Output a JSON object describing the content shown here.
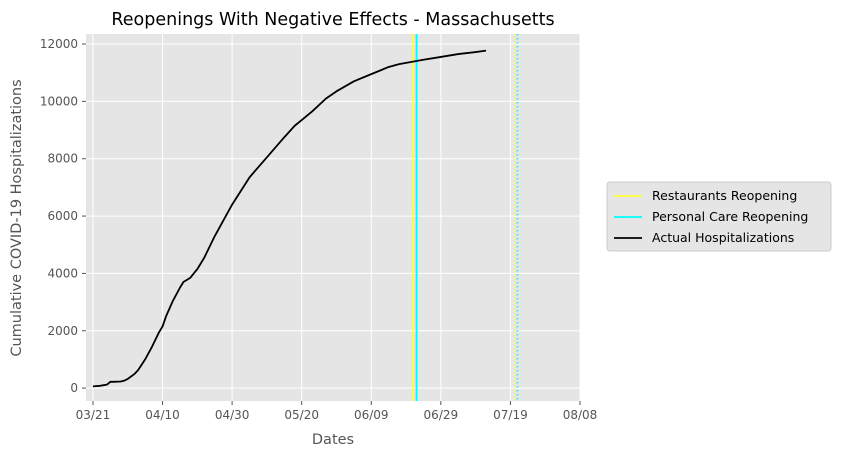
{
  "chart_data": {
    "type": "line",
    "title": "Reopenings With Negative Effects - Massachusetts",
    "xlabel": "Dates",
    "ylabel": "Cumulative COVID-19 Hospitalizations",
    "x_start_date": "2020-03-21",
    "xlim_days": [
      -2,
      140
    ],
    "ylim": [
      -450,
      12350
    ],
    "x_ticks": [
      {
        "label": "03/21",
        "day": 0
      },
      {
        "label": "04/10",
        "day": 20
      },
      {
        "label": "04/30",
        "day": 40
      },
      {
        "label": "05/20",
        "day": 60
      },
      {
        "label": "06/09",
        "day": 80
      },
      {
        "label": "06/29",
        "day": 100
      },
      {
        "label": "07/19",
        "day": 120
      },
      {
        "label": "08/08",
        "day": 140
      }
    ],
    "y_ticks": [
      {
        "label": "0",
        "value": 0
      },
      {
        "label": "2000",
        "value": 2000
      },
      {
        "label": "4000",
        "value": 4000
      },
      {
        "label": "6000",
        "value": 6000
      },
      {
        "label": "8000",
        "value": 8000
      },
      {
        "label": "10000",
        "value": 10000
      },
      {
        "label": "12000",
        "value": 12000
      }
    ],
    "grid": true,
    "legend_position": "right",
    "series": [
      {
        "name": "Actual Hospitalizations",
        "color": "#000000",
        "points": [
          [
            0,
            60
          ],
          [
            2,
            80
          ],
          [
            4,
            120
          ],
          [
            5,
            220
          ],
          [
            6,
            220
          ],
          [
            8,
            230
          ],
          [
            9,
            260
          ],
          [
            10,
            320
          ],
          [
            12,
            500
          ],
          [
            13,
            630
          ],
          [
            15,
            1000
          ],
          [
            17,
            1450
          ],
          [
            19,
            1950
          ],
          [
            20,
            2150
          ],
          [
            21,
            2500
          ],
          [
            23,
            3050
          ],
          [
            25,
            3500
          ],
          [
            26,
            3700
          ],
          [
            28,
            3850
          ],
          [
            30,
            4150
          ],
          [
            32,
            4550
          ],
          [
            35,
            5300
          ],
          [
            40,
            6400
          ],
          [
            45,
            7350
          ],
          [
            50,
            8050
          ],
          [
            55,
            8750
          ],
          [
            58,
            9150
          ],
          [
            60,
            9350
          ],
          [
            63,
            9650
          ],
          [
            67,
            10100
          ],
          [
            70,
            10350
          ],
          [
            75,
            10700
          ],
          [
            80,
            10950
          ],
          [
            85,
            11200
          ],
          [
            88,
            11300
          ],
          [
            95,
            11450
          ],
          [
            100,
            11550
          ],
          [
            105,
            11650
          ],
          [
            110,
            11720
          ],
          [
            113,
            11770
          ]
        ]
      },
      {
        "name": "Restaurants Reopening",
        "color": "#ffff33",
        "vlines": [
          {
            "day": 92,
            "style": "solid"
          },
          {
            "day": 121,
            "style": "dotted"
          }
        ]
      },
      {
        "name": "Personal Care Reopening",
        "color": "#00ffff",
        "vlines": [
          {
            "day": 93,
            "style": "solid"
          },
          {
            "day": 122,
            "style": "dotted"
          }
        ]
      }
    ],
    "legend_entries": [
      "Restaurants Reopening",
      "Personal Care Reopening",
      "Actual Hospitalizations"
    ]
  }
}
